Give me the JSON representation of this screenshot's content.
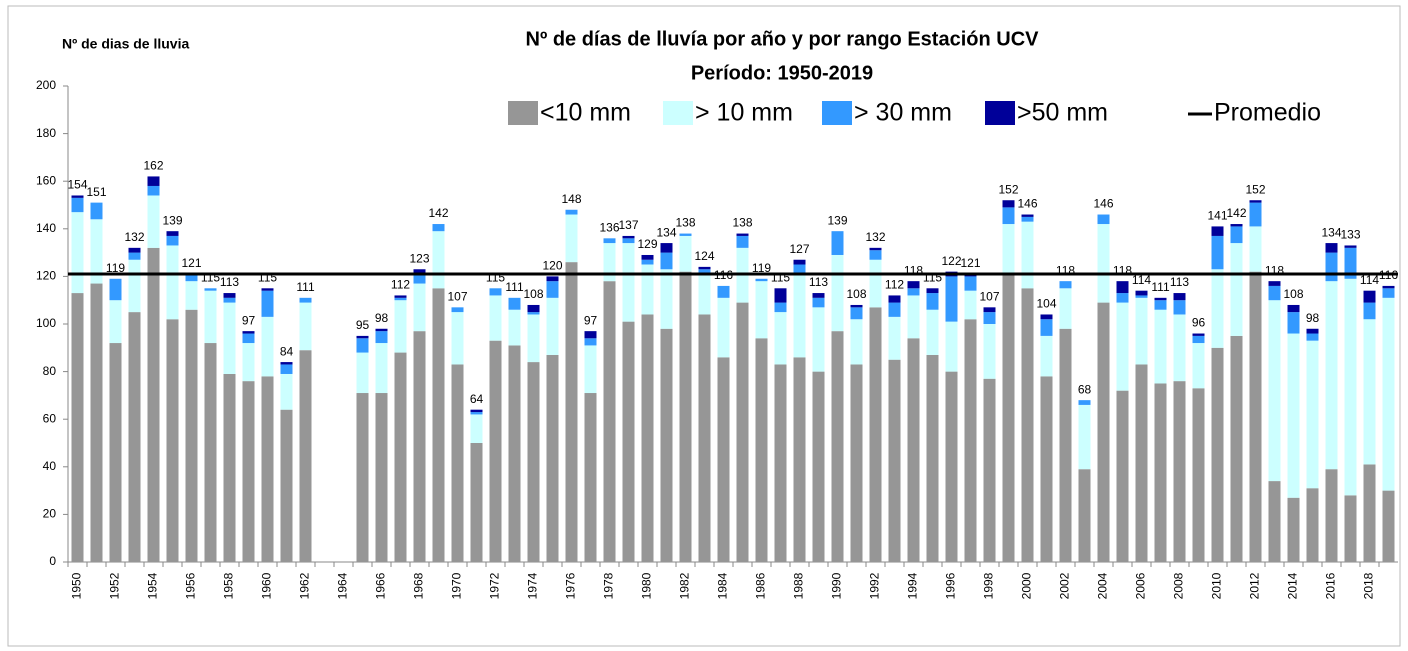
{
  "chart_data": {
    "type": "stacked_bar",
    "title": "Nº de días de lluvía por año y por rango Estación UCV",
    "subtitle": "Período:  1950-2019",
    "y_label": "Nº de dias de lluvia",
    "categories": [
      "1950",
      null,
      "1952",
      null,
      "1954",
      null,
      "1956",
      null,
      "1958",
      null,
      "1960",
      null,
      "1962",
      null,
      "1964",
      null,
      "1966",
      null,
      "1968",
      null,
      "1970",
      null,
      "1972",
      null,
      "1974",
      null,
      "1976",
      null,
      "1978",
      null,
      "1980",
      null,
      "1982",
      null,
      "1984",
      null,
      "1986",
      null,
      "1988",
      null,
      "1990",
      null,
      "1992",
      null,
      "1994",
      null,
      "1996",
      null,
      "1998",
      null,
      "2000",
      null,
      "2002",
      null,
      "2004",
      null,
      "2006",
      null,
      "2008",
      null,
      "2010",
      null,
      "2012",
      null,
      "2014",
      null,
      "2016",
      null,
      "2018",
      null
    ],
    "series": [
      {
        "name": "<10 mm",
        "color": "#969696",
        "values": [
          113,
          117,
          92,
          105,
          132,
          102,
          106,
          92,
          79,
          76,
          78,
          64,
          89,
          null,
          null,
          71,
          71,
          88,
          97,
          115,
          83,
          50,
          93,
          91,
          84,
          87,
          126,
          71,
          118,
          101,
          104,
          98,
          122,
          104,
          86,
          109,
          94,
          83,
          86,
          80,
          97,
          83,
          107,
          85,
          94,
          87,
          80,
          102,
          77,
          121,
          115,
          78,
          98,
          39,
          109,
          72,
          83,
          75,
          76,
          73,
          90,
          95,
          122,
          34,
          27,
          31,
          39,
          28,
          41,
          30
        ]
      },
      {
        "name": "> 10 mm",
        "color": "#ccffff",
        "values": [
          34,
          27,
          18,
          22,
          22,
          31,
          12,
          22,
          30,
          16,
          25,
          15,
          20,
          null,
          null,
          17,
          21,
          22,
          20,
          24,
          22,
          12,
          19,
          15,
          20,
          24,
          20,
          20,
          16,
          33,
          21,
          25,
          15,
          17,
          25,
          23,
          24,
          22,
          35,
          27,
          32,
          19,
          20,
          18,
          18,
          19,
          21,
          12,
          23,
          21,
          28,
          17,
          17,
          27,
          33,
          37,
          28,
          31,
          28,
          19,
          33,
          39,
          19,
          76,
          69,
          62,
          79,
          91,
          61,
          81
        ]
      },
      {
        "name": "> 30 mm",
        "color": "#3399ff",
        "values": [
          6,
          7,
          9,
          3,
          4,
          4,
          3,
          1,
          2,
          4,
          11,
          4,
          2,
          null,
          null,
          6,
          5,
          1,
          4,
          3,
          2,
          1,
          3,
          5,
          1,
          7,
          2,
          3,
          2,
          2,
          2,
          7,
          1,
          2,
          5,
          5,
          1,
          4,
          4,
          4,
          10,
          5,
          4,
          6,
          3,
          7,
          19,
          6,
          5,
          7,
          2,
          7,
          3,
          2,
          4,
          4,
          1,
          4,
          6,
          3,
          14,
          7,
          10,
          6,
          9,
          3,
          12,
          13,
          7,
          4
        ]
      },
      {
        "name": ">50 mm",
        "color": "#000099",
        "values": [
          1,
          0,
          0,
          2,
          4,
          2,
          0,
          0,
          2,
          1,
          1,
          1,
          0,
          null,
          null,
          1,
          1,
          1,
          2,
          0,
          0,
          1,
          0,
          0,
          3,
          2,
          0,
          3,
          0,
          1,
          2,
          4,
          0,
          1,
          0,
          1,
          0,
          6,
          2,
          2,
          0,
          1,
          1,
          3,
          3,
          2,
          2,
          1,
          2,
          3,
          1,
          2,
          0,
          0,
          0,
          5,
          2,
          1,
          3,
          1,
          4,
          1,
          1,
          2,
          3,
          2,
          4,
          1,
          5,
          1
        ]
      }
    ],
    "totals": [
      154,
      151,
      119,
      132,
      162,
      139,
      121,
      115,
      113,
      97,
      115,
      84,
      111,
      null,
      null,
      95,
      98,
      112,
      123,
      142,
      107,
      64,
      115,
      111,
      108,
      120,
      148,
      97,
      136,
      137,
      129,
      134,
      138,
      124,
      116,
      138,
      119,
      115,
      127,
      113,
      139,
      108,
      132,
      112,
      118,
      115,
      122,
      121,
      107,
      152,
      146,
      104,
      118,
      68,
      146,
      118,
      114,
      111,
      113,
      96,
      141,
      142,
      152,
      118,
      108,
      98,
      134,
      133,
      114,
      116
    ],
    "average": {
      "name": "Promedio",
      "value": 121,
      "color": "#000000"
    },
    "ylim": [
      0,
      200
    ],
    "yticks": [
      0,
      20,
      40,
      60,
      80,
      100,
      120,
      140,
      160,
      180,
      200
    ],
    "grid": false
  }
}
